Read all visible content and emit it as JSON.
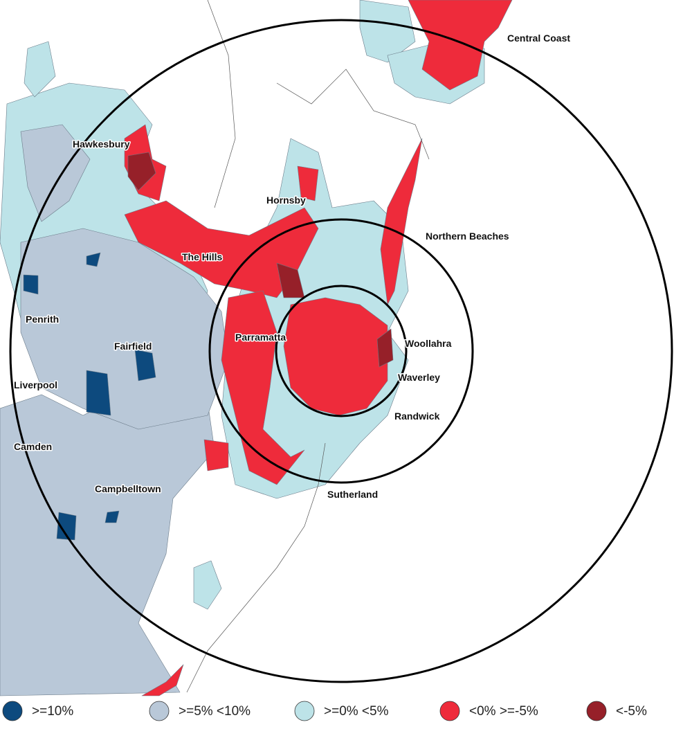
{
  "map": {
    "regions": [
      "Central Coast",
      "Hawkesbury",
      "Hornsby",
      "Northern Beaches",
      "The Hills",
      "Penrith",
      "Fairfield",
      "Parramatta",
      "Woollahra",
      "Liverpool",
      "Waverley",
      "Randwick",
      "Camden",
      "Campbelltown",
      "Sutherland"
    ],
    "legend": [
      {
        "label": ">=10%",
        "color": "#0d4a7e"
      },
      {
        "label": ">=5% <10%",
        "color": "#b9c8d8"
      },
      {
        "label": ">=0% <5%",
        "color": "#bde3e8"
      },
      {
        "label": "<0% >=-5%",
        "color": "#ee2b3b"
      },
      {
        "label": "<-5%",
        "color": "#962029"
      }
    ]
  }
}
